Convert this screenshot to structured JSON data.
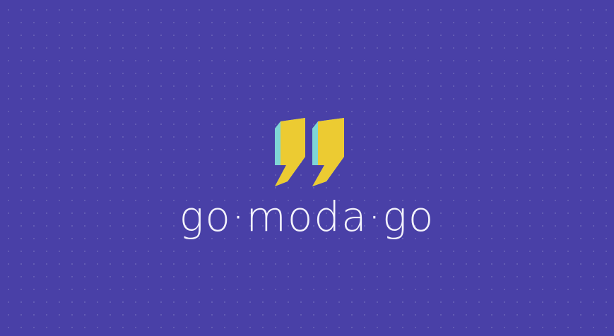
{
  "brand": {
    "wordmark": "go·moda·go",
    "logo_icon": "quotation-mark-icon"
  },
  "colors": {
    "background": "#4940a7",
    "dot_grid": "#6a62bd",
    "quote_face": "#eccb32",
    "quote_side": "#7fd6d6",
    "wordmark_text": "#f3f2fb"
  }
}
